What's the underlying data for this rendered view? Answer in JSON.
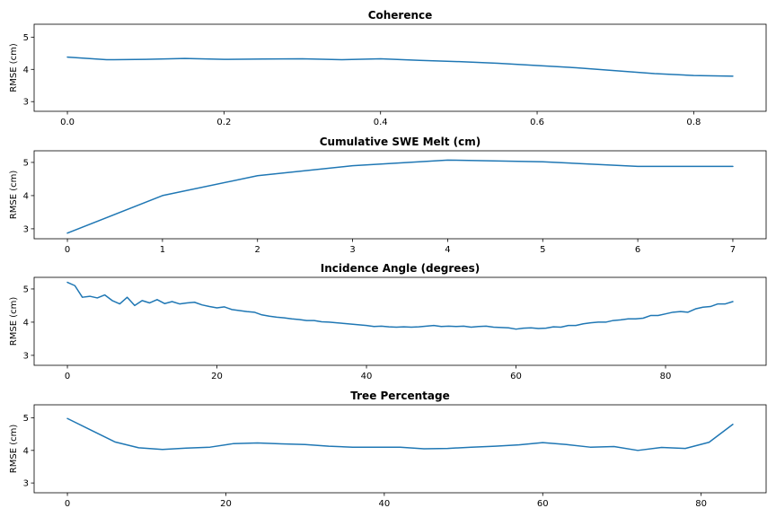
{
  "colors": {
    "series": "#1f77b4"
  },
  "chart_data": [
    {
      "type": "line",
      "title": "Coherence",
      "xlabel": "",
      "ylabel": "RMSE (cm)",
      "xlim": [
        -0.0425,
        0.8925
      ],
      "ylim": [
        2.7,
        5.4
      ],
      "xticks": [
        0.0,
        0.2,
        0.4,
        0.6,
        0.8
      ],
      "xtick_labels": [
        "0.0",
        "0.2",
        "0.4",
        "0.6",
        "0.8"
      ],
      "yticks": [
        3,
        4,
        5
      ],
      "ytick_labels": [
        "3",
        "4",
        "5"
      ],
      "x": [
        0.0,
        0.05,
        0.1,
        0.15,
        0.2,
        0.25,
        0.3,
        0.35,
        0.4,
        0.45,
        0.5,
        0.55,
        0.6,
        0.65,
        0.7,
        0.75,
        0.8,
        0.85
      ],
      "y": [
        4.38,
        4.3,
        4.31,
        4.34,
        4.31,
        4.32,
        4.33,
        4.3,
        4.33,
        4.28,
        4.24,
        4.19,
        4.12,
        4.05,
        3.96,
        3.87,
        3.81,
        3.79
      ]
    },
    {
      "type": "line",
      "title": "Cumulative SWE Melt (cm)",
      "xlabel": "",
      "ylabel": "RMSE (cm)",
      "xlim": [
        -0.35,
        7.35
      ],
      "ylim": [
        2.7,
        5.35
      ],
      "xticks": [
        0,
        1,
        2,
        3,
        4,
        5,
        6,
        7
      ],
      "xtick_labels": [
        "0",
        "1",
        "2",
        "3",
        "4",
        "5",
        "6",
        "7"
      ],
      "yticks": [
        3,
        4,
        5
      ],
      "ytick_labels": [
        "3",
        "4",
        "5"
      ],
      "x": [
        0,
        1,
        2,
        3,
        4,
        5,
        6,
        7
      ],
      "y": [
        2.87,
        4.0,
        4.6,
        4.9,
        5.07,
        5.02,
        4.88,
        4.88
      ]
    },
    {
      "type": "line",
      "title": "Incidence Angle (degrees)",
      "xlabel": "",
      "ylabel": "RMSE (cm)",
      "xlim": [
        -4.45,
        93.45
      ],
      "ylim": [
        2.7,
        5.35
      ],
      "xticks": [
        0,
        20,
        40,
        60,
        80
      ],
      "xtick_labels": [
        "0",
        "20",
        "40",
        "60",
        "80"
      ],
      "yticks": [
        3,
        4,
        5
      ],
      "ytick_labels": [
        "3",
        "4",
        "5"
      ],
      "x": [
        0,
        1,
        2,
        3,
        4,
        5,
        6,
        7,
        8,
        9,
        10,
        11,
        12,
        13,
        14,
        15,
        16,
        17,
        18,
        19,
        20,
        21,
        22,
        23,
        24,
        25,
        26,
        27,
        28,
        29,
        30,
        31,
        32,
        33,
        34,
        35,
        36,
        37,
        38,
        39,
        40,
        41,
        42,
        43,
        44,
        45,
        46,
        47,
        48,
        49,
        50,
        51,
        52,
        53,
        54,
        55,
        56,
        57,
        58,
        59,
        60,
        61,
        62,
        63,
        64,
        65,
        66,
        67,
        68,
        69,
        70,
        71,
        72,
        73,
        74,
        75,
        76,
        77,
        78,
        79,
        80,
        81,
        82,
        83,
        84,
        85,
        86,
        87,
        88,
        89
      ],
      "y": [
        5.2,
        5.1,
        4.75,
        4.78,
        4.73,
        4.82,
        4.65,
        4.55,
        4.75,
        4.5,
        4.65,
        4.58,
        4.68,
        4.56,
        4.62,
        4.55,
        4.58,
        4.6,
        4.52,
        4.47,
        4.43,
        4.46,
        4.38,
        4.35,
        4.32,
        4.3,
        4.22,
        4.18,
        4.15,
        4.13,
        4.1,
        4.08,
        4.05,
        4.05,
        4.01,
        4.0,
        3.98,
        3.96,
        3.94,
        3.92,
        3.9,
        3.87,
        3.88,
        3.86,
        3.85,
        3.86,
        3.85,
        3.86,
        3.88,
        3.9,
        3.87,
        3.88,
        3.87,
        3.88,
        3.85,
        3.87,
        3.88,
        3.85,
        3.84,
        3.83,
        3.79,
        3.82,
        3.83,
        3.81,
        3.82,
        3.86,
        3.85,
        3.9,
        3.9,
        3.95,
        3.98,
        4.0,
        4.0,
        4.05,
        4.07,
        4.1,
        4.1,
        4.12,
        4.2,
        4.2,
        4.25,
        4.3,
        4.32,
        4.3,
        4.4,
        4.45,
        4.47,
        4.55,
        4.55,
        4.62
      ]
    },
    {
      "type": "line",
      "title": "Tree Percentage",
      "xlabel": "",
      "ylabel": "RMSE (cm)",
      "xlim": [
        -4.2,
        88.2
      ],
      "ylim": [
        2.7,
        5.4
      ],
      "xticks": [
        0,
        20,
        40,
        60,
        80
      ],
      "xtick_labels": [
        "0",
        "20",
        "40",
        "60",
        "80"
      ],
      "yticks": [
        3,
        4,
        5
      ],
      "ytick_labels": [
        "3",
        "4",
        "5"
      ],
      "x": [
        0,
        3,
        6,
        9,
        12,
        15,
        18,
        21,
        24,
        27,
        30,
        33,
        36,
        39,
        42,
        45,
        48,
        51,
        54,
        57,
        60,
        63,
        66,
        69,
        72,
        75,
        78,
        81,
        84
      ],
      "y": [
        4.98,
        4.62,
        4.26,
        4.08,
        4.03,
        4.07,
        4.1,
        4.21,
        4.23,
        4.2,
        4.18,
        4.13,
        4.1,
        4.1,
        4.1,
        4.05,
        4.06,
        4.1,
        4.13,
        4.17,
        4.24,
        4.18,
        4.1,
        4.12,
        4.0,
        4.09,
        4.06,
        4.25,
        4.8
      ]
    }
  ]
}
